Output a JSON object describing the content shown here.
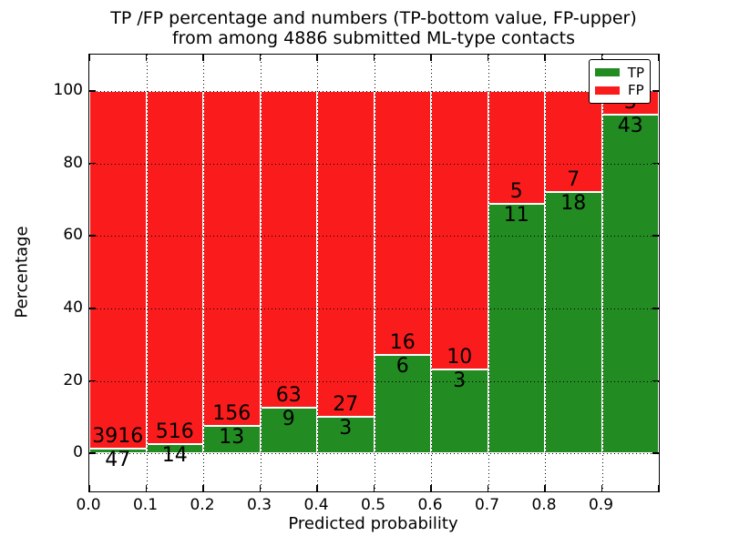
{
  "chart_data": {
    "type": "bar",
    "stacked": true,
    "normalized_to_percent": true,
    "title": "TP /FP percentage and numbers (TP-bottom value, FP-upper) from among 4886 submitted ML-type contacts",
    "title_line1": "TP /FP percentage and numbers (TP-bottom value, FP-upper)",
    "title_line2": "from among 4886 submitted ML-type contacts",
    "xlabel": "Predicted probability",
    "ylabel": "Percentage",
    "total_contacts": 4886,
    "bin_width": 0.1,
    "bin_starts": [
      0.0,
      0.1,
      0.2,
      0.3,
      0.4,
      0.5,
      0.6,
      0.7,
      0.8,
      0.9
    ],
    "xtick_labels": [
      "0.0",
      "0.1",
      "0.2",
      "0.3",
      "0.4",
      "0.5",
      "0.6",
      "0.7",
      "0.8",
      "0.9"
    ],
    "yticks": [
      0,
      20,
      40,
      60,
      80,
      100
    ],
    "xlim": [
      0.0,
      1.0
    ],
    "ylim": [
      -10.5,
      110
    ],
    "grid": "dotted-black",
    "legend_position": "upper-right",
    "series": [
      {
        "name": "TP",
        "color": "#228b22",
        "counts": [
          47,
          14,
          13,
          9,
          3,
          6,
          3,
          11,
          18,
          43
        ]
      },
      {
        "name": "FP",
        "color": "#fa1c1c",
        "counts": [
          3916,
          516,
          156,
          63,
          27,
          16,
          10,
          5,
          7,
          3
        ]
      }
    ],
    "tp_percent": [
      1.19,
      2.64,
      7.69,
      12.5,
      10.0,
      27.27,
      23.08,
      68.75,
      72.0,
      93.48
    ]
  }
}
